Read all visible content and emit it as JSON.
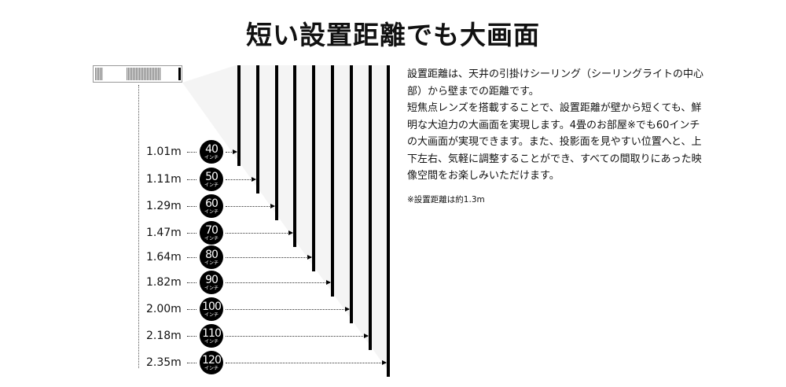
{
  "title": "短い設置距離でも大画面",
  "unit_label": "インチ",
  "rows": [
    {
      "distance": "1.01m",
      "size": "40"
    },
    {
      "distance": "1.11m",
      "size": "50"
    },
    {
      "distance": "1.29m",
      "size": "60"
    },
    {
      "distance": "1.47m",
      "size": "70"
    },
    {
      "distance": "1.64m",
      "size": "80"
    },
    {
      "distance": "1.82m",
      "size": "90"
    },
    {
      "distance": "2.00m",
      "size": "100"
    },
    {
      "distance": "2.18m",
      "size": "110"
    },
    {
      "distance": "2.35m",
      "size": "120"
    }
  ],
  "description": [
    "設置距離は、天井の引掛けシーリング（シーリングライトの中心部）から壁までの距離です。",
    "短焦点レンズを搭載することで、設置距離が壁から短くても、鮮明な大迫力の大画面を実現します。4畳のお部屋※でも60インチの大画面が実現できます。また、投影面を見やすい位置へと、上下左右、気軽に調整することができ、すべての間取りにあった映像空間をお楽しみいただけます。"
  ],
  "note": "※設置距離は約1.3m"
}
